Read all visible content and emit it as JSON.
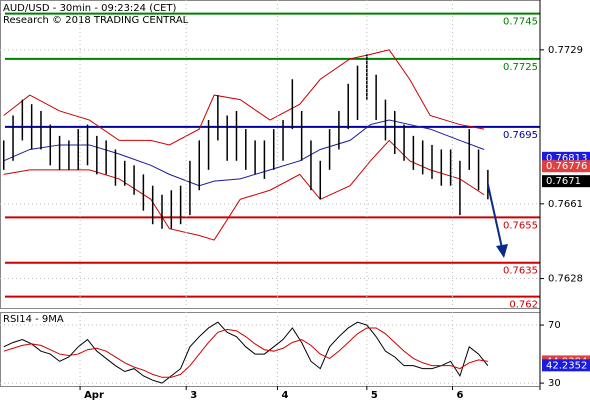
{
  "chart_data": [
    {
      "type": "ohlc",
      "title": "AUD/USD - 30min - 09:23:24 (CET)",
      "subtitle": "Research © 2018 TRADING CENTRAL",
      "x": [
        2,
        7,
        12,
        17,
        22,
        27,
        32,
        37,
        42,
        47,
        52,
        57,
        62,
        67,
        72,
        77,
        82,
        87,
        92,
        97,
        102,
        107,
        112,
        117,
        122,
        127,
        132,
        137,
        142,
        147,
        152,
        157,
        162,
        167,
        172,
        177,
        182,
        187,
        192,
        197,
        202,
        207,
        212,
        217,
        222,
        227,
        232,
        237,
        242,
        247,
        252,
        257,
        262
      ],
      "high": [
        0.7689,
        0.77,
        0.7707,
        0.7705,
        0.7702,
        0.7696,
        0.7691,
        0.7689,
        0.7694,
        0.7696,
        0.7691,
        0.7689,
        0.7685,
        0.768,
        0.7678,
        0.7674,
        0.7669,
        0.7665,
        0.7667,
        0.7669,
        0.768,
        0.7689,
        0.7698,
        0.7709,
        0.77,
        0.7702,
        0.7694,
        0.7689,
        0.7689,
        0.7694,
        0.7698,
        0.7716,
        0.7702,
        0.7689,
        0.768,
        0.7694,
        0.7702,
        0.7714,
        0.7722,
        0.7727,
        0.7718,
        0.7707,
        0.7702,
        0.7696,
        0.7691,
        0.7689,
        0.7687,
        0.7685,
        0.7685,
        0.768,
        0.7694,
        0.7685,
        0.7676
      ],
      "low": [
        0.7676,
        0.768,
        0.7689,
        0.7685,
        0.7685,
        0.7678,
        0.7676,
        0.7676,
        0.7676,
        0.7678,
        0.7674,
        0.7674,
        0.7669,
        0.7669,
        0.7665,
        0.7658,
        0.7652,
        0.765,
        0.765,
        0.7652,
        0.7656,
        0.7667,
        0.7676,
        0.7689,
        0.768,
        0.768,
        0.7676,
        0.7674,
        0.7672,
        0.7676,
        0.768,
        0.7694,
        0.768,
        0.7667,
        0.7663,
        0.7676,
        0.7685,
        0.7694,
        0.7698,
        0.7707,
        0.7698,
        0.7689,
        0.7683,
        0.768,
        0.7676,
        0.7674,
        0.7672,
        0.7669,
        0.7669,
        0.7656,
        0.7676,
        0.7667,
        0.7663
      ],
      "color": "#000000",
      "series": [
        {
          "color": "#cc0000",
          "x": [
            2,
            16,
            32,
            48,
            64,
            81,
            91,
            107,
            115,
            129,
            145,
            161,
            172,
            188,
            199,
            209,
            220,
            231,
            247,
            260
          ],
          "values": [
            0.77,
            0.7709,
            0.7702,
            0.7698,
            0.7689,
            0.7689,
            0.7687,
            0.7694,
            0.7709,
            0.7707,
            0.7698,
            0.7705,
            0.7716,
            0.7725,
            0.7727,
            0.7729,
            0.7716,
            0.77,
            0.7696,
            0.7694
          ]
        },
        {
          "color": "#cc0000",
          "x": [
            2,
            16,
            32,
            48,
            64,
            81,
            91,
            107,
            115,
            129,
            145,
            161,
            172,
            188,
            199,
            209,
            220,
            231,
            247,
            260
          ],
          "values": [
            0.7674,
            0.7676,
            0.7676,
            0.7676,
            0.7672,
            0.7663,
            0.765,
            0.7647,
            0.7645,
            0.7663,
            0.7667,
            0.7674,
            0.7663,
            0.7669,
            0.768,
            0.7689,
            0.768,
            0.7676,
            0.7672,
            0.7665
          ]
        },
        {
          "color": "#1a1aa0",
          "x": [
            2,
            16,
            32,
            48,
            64,
            81,
            91,
            107,
            115,
            129,
            145,
            161,
            172,
            188,
            199,
            209,
            220,
            231,
            247,
            260
          ],
          "values": [
            0.768,
            0.7685,
            0.7687,
            0.7687,
            0.7683,
            0.7678,
            0.7674,
            0.7669,
            0.7671,
            0.7672,
            0.7676,
            0.768,
            0.7685,
            0.7689,
            0.7696,
            0.7698,
            0.7696,
            0.7694,
            0.7689,
            0.7685
          ]
        }
      ],
      "levels": [
        {
          "value": 0.7745,
          "color": "#008000"
        },
        {
          "value": 0.7725,
          "color": "#008000"
        },
        {
          "value": 0.7695,
          "color": "#0000a0"
        },
        {
          "value": 0.7655,
          "color": "#cc0000"
        },
        {
          "value": 0.7635,
          "color": "#cc0000"
        },
        {
          "value": 0.762,
          "color": "#cc0000"
        }
      ],
      "price_tags": [
        {
          "value": 0.76813,
          "color": "#1a1ae0"
        },
        {
          "value": 0.76776,
          "color": "#e04040"
        },
        {
          "value": 0.7671,
          "color": "#000000"
        }
      ],
      "xlim": [
        0,
        290
      ],
      "ylim": [
        0.7615,
        0.7751
      ],
      "yticks": [
        0.7729,
        0.7661,
        0.7628
      ],
      "grid": true
    },
    {
      "type": "line",
      "title": "RSI14 - 9MA",
      "series": [
        {
          "color": "#000000",
          "values": [
            55,
            58,
            60,
            57,
            52,
            50,
            45,
            48,
            55,
            60,
            52,
            47,
            42,
            38,
            40,
            35,
            32,
            30,
            35,
            40,
            55,
            62,
            68,
            72,
            65,
            62,
            55,
            50,
            50,
            55,
            60,
            68,
            58,
            45,
            40,
            55,
            62,
            68,
            72,
            70,
            62,
            52,
            48,
            42,
            42,
            40,
            40,
            42,
            45,
            35,
            55,
            50,
            42
          ]
        },
        {
          "color": "#cc0000",
          "values": [
            52,
            54,
            56,
            57,
            56,
            53,
            50,
            49,
            50,
            53,
            54,
            52,
            48,
            44,
            41,
            39,
            36,
            34,
            34,
            36,
            42,
            50,
            58,
            65,
            67,
            66,
            62,
            57,
            53,
            52,
            54,
            58,
            60,
            56,
            50,
            47,
            52,
            58,
            64,
            68,
            68,
            64,
            58,
            52,
            47,
            44,
            42,
            42,
            42,
            40,
            44,
            46,
            45
          ]
        }
      ],
      "price_tags": [
        {
          "value": 44.9384,
          "color": "#e04040"
        },
        {
          "value": 42.2352,
          "color": "#1a1ae0"
        }
      ],
      "xlim": [
        0,
        290
      ],
      "ylim": [
        28,
        79
      ],
      "yticks": [
        70,
        30
      ],
      "xticks": [
        {
          "value": 43,
          "label": "Apr"
        },
        {
          "value": 100,
          "label": "3"
        },
        {
          "value": 149,
          "label": "4"
        },
        {
          "value": 197,
          "label": "5"
        },
        {
          "value": 243,
          "label": "6"
        }
      ],
      "grid": true
    }
  ]
}
